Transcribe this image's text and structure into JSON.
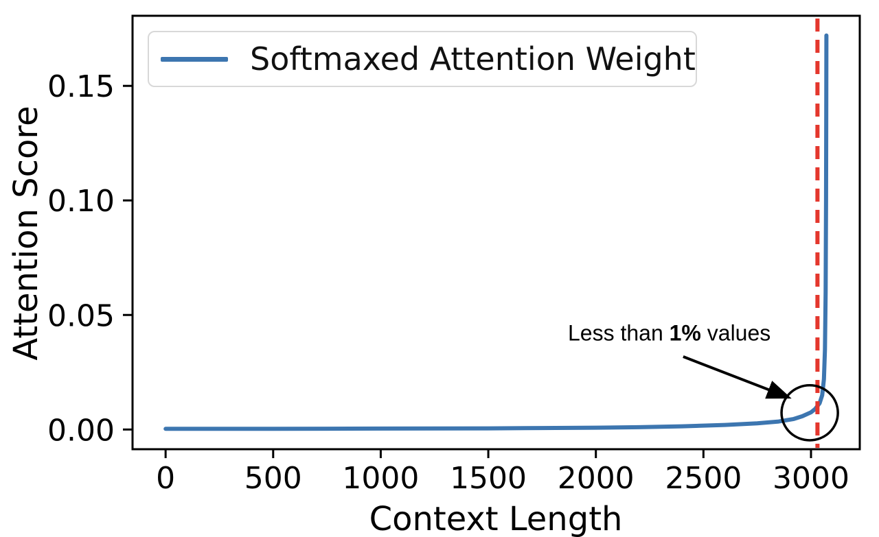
{
  "chart_data": {
    "type": "line",
    "title": "",
    "xlabel": "Context Length",
    "ylabel": "Attention Score",
    "grid": false,
    "xlim": [
      -153.7,
      3226.7
    ],
    "ylim": [
      -0.0086,
      0.1806
    ],
    "x_ticks": [
      {
        "v": 0,
        "label": "0"
      },
      {
        "v": 500,
        "label": "500"
      },
      {
        "v": 1000,
        "label": "1000"
      },
      {
        "v": 1500,
        "label": "1500"
      },
      {
        "v": 2000,
        "label": "2000"
      },
      {
        "v": 2500,
        "label": "2500"
      },
      {
        "v": 3000,
        "label": "3000"
      }
    ],
    "y_ticks": [
      {
        "v": 0.0,
        "label": "0.00"
      },
      {
        "v": 0.05,
        "label": "0.05"
      },
      {
        "v": 0.1,
        "label": "0.10"
      },
      {
        "v": 0.15,
        "label": "0.15"
      }
    ],
    "legend": {
      "position": "upper left",
      "entries": [
        {
          "label": "Softmaxed Attention Weight",
          "color": "#3d76b0"
        }
      ]
    },
    "series": [
      {
        "name": "Softmaxed Attention Weight",
        "color": "#3d76b0",
        "line_width": 6,
        "points": [
          [
            0,
            0.0003
          ],
          [
            250,
            0.0003
          ],
          [
            500,
            0.0003
          ],
          [
            750,
            0.00035
          ],
          [
            1000,
            0.0004
          ],
          [
            1250,
            0.00045
          ],
          [
            1500,
            0.0005
          ],
          [
            1750,
            0.00065
          ],
          [
            2000,
            0.0008
          ],
          [
            2200,
            0.001
          ],
          [
            2400,
            0.0014
          ],
          [
            2600,
            0.002
          ],
          [
            2750,
            0.0027
          ],
          [
            2850,
            0.0035
          ],
          [
            2920,
            0.0046
          ],
          [
            2960,
            0.0058
          ],
          [
            3000,
            0.0075
          ],
          [
            3020,
            0.009
          ],
          [
            3040,
            0.0115
          ],
          [
            3052,
            0.015
          ],
          [
            3060,
            0.022
          ],
          [
            3065,
            0.035
          ],
          [
            3068,
            0.06
          ],
          [
            3070,
            0.1
          ],
          [
            3071,
            0.14
          ],
          [
            3071.5,
            0.172
          ]
        ]
      }
    ],
    "vline": {
      "x": 3030,
      "color": "#e4372d",
      "style": "dashed",
      "line_width": 6
    },
    "annotation": {
      "text_prefix": "Less than ",
      "text_bold": "1%",
      "text_suffix": " values",
      "text_anchor": [
        1870,
        0.042
      ],
      "arrow_from": [
        2406,
        0.0318
      ],
      "arrow_to": [
        2892,
        0.01415
      ],
      "circle_center": [
        2994,
        0.0073
      ],
      "circle_rx": 131,
      "circle_ry": 0.012
    }
  }
}
